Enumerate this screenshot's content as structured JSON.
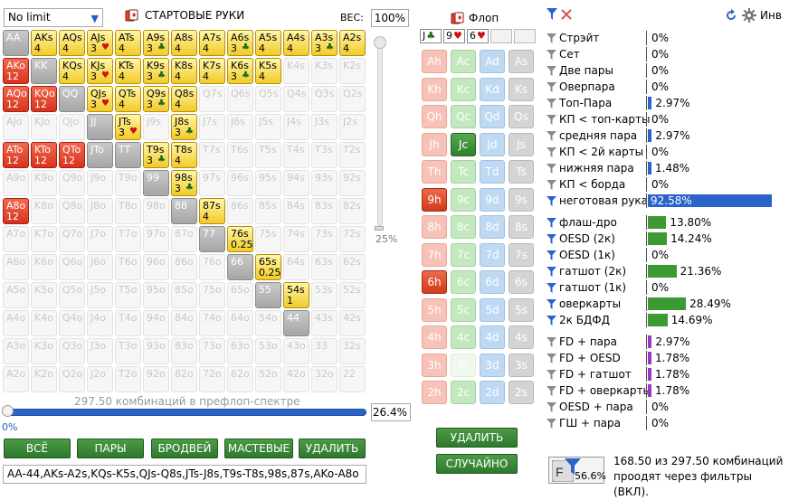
{
  "header": {
    "limit_select": "No limit",
    "hands_title": "СТАРТОВЫЕ РУКИ",
    "weight_label": "ВЕС:",
    "weight_value": "100%"
  },
  "grid": {
    "ranks": [
      "A",
      "K",
      "Q",
      "J",
      "T",
      "9",
      "8",
      "7",
      "6",
      "5",
      "4",
      "3",
      "2"
    ],
    "cells": [
      [
        "AA",
        "gray",
        ""
      ],
      [
        "AKs",
        "yellow",
        "4"
      ],
      [
        "AQs",
        "yellow",
        "4"
      ],
      [
        "AJs",
        "yellow",
        "3"
      ],
      [
        "ATs",
        "yellow",
        "4"
      ],
      [
        "A9s",
        "yellow",
        "3"
      ],
      [
        "A8s",
        "yellow",
        "4"
      ],
      [
        "A7s",
        "yellow",
        "4"
      ],
      [
        "A6s",
        "yellow",
        "3"
      ],
      [
        "A5s",
        "yellow",
        "4"
      ],
      [
        "A4s",
        "yellow",
        "4"
      ],
      [
        "A3s",
        "yellow",
        "3"
      ],
      [
        "A2s",
        "yellow",
        "4"
      ],
      [
        "AKo",
        "red",
        "12"
      ],
      [
        "KK",
        "gray",
        ""
      ],
      [
        "KQs",
        "yellow",
        "4"
      ],
      [
        "KJs",
        "yellow",
        "3"
      ],
      [
        "KTs",
        "yellow",
        "4"
      ],
      [
        "K9s",
        "yellow",
        "3"
      ],
      [
        "K8s",
        "yellow",
        "4"
      ],
      [
        "K7s",
        "yellow",
        "4"
      ],
      [
        "K6s",
        "yellow",
        "3"
      ],
      [
        "K5s",
        "yellow",
        "4"
      ],
      [
        "K4s",
        "empty",
        ""
      ],
      [
        "K3s",
        "empty",
        ""
      ],
      [
        "K2s",
        "empty",
        ""
      ],
      [
        "AQo",
        "red",
        "12"
      ],
      [
        "KQo",
        "red",
        "12"
      ],
      [
        "QQ",
        "gray",
        ""
      ],
      [
        "QJs",
        "yellow",
        "3"
      ],
      [
        "QTs",
        "yellow",
        "4"
      ],
      [
        "Q9s",
        "yellow",
        "3"
      ],
      [
        "Q8s",
        "yellow",
        "4"
      ],
      [
        "Q7s",
        "empty",
        ""
      ],
      [
        "Q6s",
        "empty",
        ""
      ],
      [
        "Q5s",
        "empty",
        ""
      ],
      [
        "Q4s",
        "empty",
        ""
      ],
      [
        "Q3s",
        "empty",
        ""
      ],
      [
        "Q2s",
        "empty",
        ""
      ],
      [
        "AJo",
        "empty",
        ""
      ],
      [
        "KJo",
        "empty",
        ""
      ],
      [
        "QJo",
        "empty",
        ""
      ],
      [
        "JJ",
        "gray",
        ""
      ],
      [
        "JTs",
        "yellow",
        "3"
      ],
      [
        "J9s",
        "empty",
        ""
      ],
      [
        "J8s",
        "yellow",
        "3"
      ],
      [
        "J7s",
        "empty",
        ""
      ],
      [
        "J6s",
        "empty",
        ""
      ],
      [
        "J5s",
        "empty",
        ""
      ],
      [
        "J4s",
        "empty",
        ""
      ],
      [
        "J3s",
        "empty",
        ""
      ],
      [
        "J2s",
        "empty",
        ""
      ],
      [
        "ATo",
        "red",
        "12"
      ],
      [
        "KTo",
        "red",
        "12"
      ],
      [
        "QTo",
        "red",
        "12"
      ],
      [
        "JTo",
        "gray",
        ""
      ],
      [
        "TT",
        "gray",
        ""
      ],
      [
        "T9s",
        "yellow",
        "3"
      ],
      [
        "T8s",
        "yellow",
        "4"
      ],
      [
        "T7s",
        "empty",
        ""
      ],
      [
        "T6s",
        "empty",
        ""
      ],
      [
        "T5s",
        "empty",
        ""
      ],
      [
        "T4s",
        "empty",
        ""
      ],
      [
        "T3s",
        "empty",
        ""
      ],
      [
        "T2s",
        "empty",
        ""
      ],
      [
        "A9o",
        "empty",
        ""
      ],
      [
        "K9o",
        "empty",
        ""
      ],
      [
        "Q9o",
        "empty",
        ""
      ],
      [
        "J9o",
        "empty",
        ""
      ],
      [
        "T9o",
        "empty",
        ""
      ],
      [
        "99",
        "gray",
        ""
      ],
      [
        "98s",
        "yellow",
        "3"
      ],
      [
        "97s",
        "empty",
        ""
      ],
      [
        "96s",
        "empty",
        ""
      ],
      [
        "95s",
        "empty",
        ""
      ],
      [
        "94s",
        "empty",
        ""
      ],
      [
        "93s",
        "empty",
        ""
      ],
      [
        "92s",
        "empty",
        ""
      ],
      [
        "A8o",
        "red",
        "12"
      ],
      [
        "K8o",
        "empty",
        ""
      ],
      [
        "Q8o",
        "empty",
        ""
      ],
      [
        "J8o",
        "empty",
        ""
      ],
      [
        "T8o",
        "empty",
        ""
      ],
      [
        "98o",
        "empty",
        ""
      ],
      [
        "88",
        "gray",
        ""
      ],
      [
        "87s",
        "yellow",
        "4"
      ],
      [
        "86s",
        "empty",
        ""
      ],
      [
        "85s",
        "empty",
        ""
      ],
      [
        "84s",
        "empty",
        ""
      ],
      [
        "83s",
        "empty",
        ""
      ],
      [
        "82s",
        "empty",
        ""
      ],
      [
        "A7o",
        "empty",
        ""
      ],
      [
        "K7o",
        "empty",
        ""
      ],
      [
        "Q7o",
        "empty",
        ""
      ],
      [
        "J7o",
        "empty",
        ""
      ],
      [
        "T7o",
        "empty",
        ""
      ],
      [
        "97o",
        "empty",
        ""
      ],
      [
        "87o",
        "empty",
        ""
      ],
      [
        "77",
        "gray",
        ""
      ],
      [
        "76s",
        "yellow",
        "0.25"
      ],
      [
        "75s",
        "empty",
        ""
      ],
      [
        "74s",
        "empty",
        ""
      ],
      [
        "73s",
        "empty",
        ""
      ],
      [
        "72s",
        "empty",
        ""
      ],
      [
        "A6o",
        "empty",
        ""
      ],
      [
        "K6o",
        "empty",
        ""
      ],
      [
        "Q6o",
        "empty",
        ""
      ],
      [
        "J6o",
        "empty",
        ""
      ],
      [
        "T6o",
        "empty",
        ""
      ],
      [
        "96o",
        "empty",
        ""
      ],
      [
        "86o",
        "empty",
        ""
      ],
      [
        "76o",
        "empty",
        ""
      ],
      [
        "66",
        "gray",
        ""
      ],
      [
        "65s",
        "yellow",
        "0.25"
      ],
      [
        "64s",
        "empty",
        ""
      ],
      [
        "63s",
        "empty",
        ""
      ],
      [
        "62s",
        "empty",
        ""
      ],
      [
        "A5o",
        "empty",
        ""
      ],
      [
        "K5o",
        "empty",
        ""
      ],
      [
        "Q5o",
        "empty",
        ""
      ],
      [
        "J5o",
        "empty",
        ""
      ],
      [
        "T5o",
        "empty",
        ""
      ],
      [
        "95o",
        "empty",
        ""
      ],
      [
        "85o",
        "empty",
        ""
      ],
      [
        "75o",
        "empty",
        ""
      ],
      [
        "65o",
        "empty",
        ""
      ],
      [
        "55",
        "gray",
        ""
      ],
      [
        "54s",
        "yellow",
        "1"
      ],
      [
        "53s",
        "empty",
        ""
      ],
      [
        "52s",
        "empty",
        ""
      ],
      [
        "A4o",
        "empty",
        ""
      ],
      [
        "K4o",
        "empty",
        ""
      ],
      [
        "Q4o",
        "empty",
        ""
      ],
      [
        "J4o",
        "empty",
        ""
      ],
      [
        "T4o",
        "empty",
        ""
      ],
      [
        "94o",
        "empty",
        ""
      ],
      [
        "84o",
        "empty",
        ""
      ],
      [
        "74o",
        "empty",
        ""
      ],
      [
        "64o",
        "empty",
        ""
      ],
      [
        "54o",
        "empty",
        ""
      ],
      [
        "44",
        "gray",
        ""
      ],
      [
        "43s",
        "empty",
        ""
      ],
      [
        "42s",
        "empty",
        ""
      ],
      [
        "A3o",
        "empty",
        ""
      ],
      [
        "K3o",
        "empty",
        ""
      ],
      [
        "Q3o",
        "empty",
        ""
      ],
      [
        "J3o",
        "empty",
        ""
      ],
      [
        "T3o",
        "empty",
        ""
      ],
      [
        "93o",
        "empty",
        ""
      ],
      [
        "83o",
        "empty",
        ""
      ],
      [
        "73o",
        "empty",
        ""
      ],
      [
        "63o",
        "empty",
        ""
      ],
      [
        "53o",
        "empty",
        ""
      ],
      [
        "43o",
        "empty",
        ""
      ],
      [
        "33",
        "empty",
        ""
      ],
      [
        "32s",
        "empty",
        ""
      ],
      [
        "A2o",
        "empty",
        ""
      ],
      [
        "K2o",
        "empty",
        ""
      ],
      [
        "Q2o",
        "empty",
        ""
      ],
      [
        "J2o",
        "empty",
        ""
      ],
      [
        "T2o",
        "empty",
        ""
      ],
      [
        "92o",
        "empty",
        ""
      ],
      [
        "82o",
        "empty",
        ""
      ],
      [
        "72o",
        "empty",
        ""
      ],
      [
        "62o",
        "empty",
        ""
      ],
      [
        "52o",
        "empty",
        ""
      ],
      [
        "42o",
        "empty",
        ""
      ],
      [
        "32o",
        "empty",
        ""
      ],
      [
        "22",
        "empty",
        ""
      ]
    ],
    "suit_marks": {
      "AJs": "heart",
      "A9s": "club",
      "A6s": "club",
      "A3s": "club",
      "KJs": "heart",
      "K9s": "club",
      "K6s": "club",
      "QJs": "heart",
      "Q9s": "club",
      "JTs": "heart",
      "J8s": "club",
      "T9s": "club",
      "98s": "club"
    }
  },
  "range_slider_pct": "25%",
  "range_slider_value": 0.25,
  "combo_caption": "297.50 комбинаций в префлоп-спектре",
  "range_value_left": "0%",
  "range_value_pct": "26.4%",
  "buttons": {
    "all": "ВСЁ",
    "pairs": "ПАРЫ",
    "broadway": "БРОДВЕЙ",
    "suited": "МАСТЕВЫЕ",
    "delete": "УДАЛИТЬ"
  },
  "range_text": "AA-44,AKs-A2s,KQs-K5s,QJs-Q8s,JTs-J8s,T9s-T8s,98s,87s,AKo-A8o",
  "flop": {
    "title": "Флоп",
    "slots": [
      {
        "text": "J",
        "suit": "club"
      },
      {
        "text": "9",
        "suit": "heart"
      },
      {
        "text": "6",
        "suit": "heart"
      },
      {
        "text": "",
        "suit": ""
      },
      {
        "text": "",
        "suit": ""
      }
    ],
    "ranks": [
      "A",
      "K",
      "Q",
      "J",
      "T",
      "9",
      "8",
      "7",
      "6",
      "5",
      "4",
      "3",
      "2"
    ],
    "selected": [
      "Jc",
      "9h",
      "6h"
    ],
    "disabled": [
      "3c"
    ],
    "delete_button": "УДАЛИТЬ",
    "random_button": "СЛУЧАЙНО"
  },
  "stats": {
    "colors": {
      "blue": "#2a63c9",
      "green": "#3d9a32",
      "purple": "#9b36c9"
    },
    "rows": [
      {
        "label": "Стрэйт",
        "value": "0%",
        "pct": 0,
        "color": "blue",
        "filter": "gray"
      },
      {
        "label": "Сет",
        "value": "0%",
        "pct": 0,
        "color": "blue",
        "filter": "gray"
      },
      {
        "label": "Две пары",
        "value": "0%",
        "pct": 0,
        "color": "blue",
        "filter": "gray"
      },
      {
        "label": "Оверпара",
        "value": "0%",
        "pct": 0,
        "color": "blue",
        "filter": "gray"
      },
      {
        "label": "Топ-Пара",
        "value": "2.97%",
        "pct": 2.97,
        "color": "blue",
        "filter": "gray"
      },
      {
        "label": "КП < топ-карты",
        "value": "0%",
        "pct": 0,
        "color": "blue",
        "filter": "gray"
      },
      {
        "label": "средняя пара",
        "value": "2.97%",
        "pct": 2.97,
        "color": "blue",
        "filter": "gray"
      },
      {
        "label": "КП < 2й карты",
        "value": "0%",
        "pct": 0,
        "color": "blue",
        "filter": "gray"
      },
      {
        "label": "нижняя пара",
        "value": "1.48%",
        "pct": 1.48,
        "color": "blue",
        "filter": "gray"
      },
      {
        "label": "КП < борда",
        "value": "0%",
        "pct": 0,
        "color": "blue",
        "filter": "gray"
      },
      {
        "label": "неготовая рука",
        "value": "92.58%",
        "pct": 92.58,
        "color": "blue",
        "filter": "blue"
      },
      {
        "label": "флаш-дро",
        "value": "13.80%",
        "pct": 13.8,
        "color": "green",
        "filter": "blue"
      },
      {
        "label": "OESD (2к)",
        "value": "14.24%",
        "pct": 14.24,
        "color": "green",
        "filter": "blue"
      },
      {
        "label": "OESD (1к)",
        "value": "0%",
        "pct": 0,
        "color": "green",
        "filter": "blue"
      },
      {
        "label": "гатшот (2к)",
        "value": "21.36%",
        "pct": 21.36,
        "color": "green",
        "filter": "blue"
      },
      {
        "label": "гатшот (1к)",
        "value": "0%",
        "pct": 0,
        "color": "green",
        "filter": "blue"
      },
      {
        "label": "оверкарты",
        "value": "28.49%",
        "pct": 28.49,
        "color": "green",
        "filter": "blue"
      },
      {
        "label": "2к БДФД",
        "value": "14.69%",
        "pct": 14.69,
        "color": "green",
        "filter": "blue"
      },
      {
        "label": "FD + пара",
        "value": "2.97%",
        "pct": 2.97,
        "color": "purple",
        "filter": "gray"
      },
      {
        "label": "FD + OESD",
        "value": "1.78%",
        "pct": 1.78,
        "color": "purple",
        "filter": "gray"
      },
      {
        "label": "FD + гатшот",
        "value": "1.78%",
        "pct": 1.78,
        "color": "purple",
        "filter": "gray"
      },
      {
        "label": "FD + оверкарты",
        "value": "1.78%",
        "pct": 1.78,
        "color": "purple",
        "filter": "gray"
      },
      {
        "label": "OESD + пара",
        "value": "0%",
        "pct": 0,
        "color": "purple",
        "filter": "gray"
      },
      {
        "label": "ГШ + пара",
        "value": "0%",
        "pct": 0,
        "color": "purple",
        "filter": "gray"
      }
    ]
  },
  "status": {
    "box_pct": "56.6%",
    "line1": "168.50 из 297.50 комбинаций",
    "line2": "проодят через фильтры (ВКЛ)."
  },
  "right_header": {
    "text": "Инв"
  }
}
